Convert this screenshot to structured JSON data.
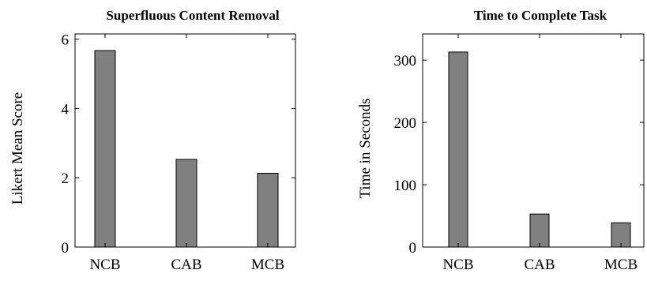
{
  "chart_data": [
    {
      "type": "bar",
      "title": "Superfluous Content Removal",
      "xlabel": "",
      "ylabel": "Likert Mean Score",
      "categories": [
        "NCB",
        "CAB",
        "MCB"
      ],
      "values": [
        5.67,
        2.53,
        2.13
      ],
      "ylim": [
        0,
        6.15
      ],
      "yticks": [
        0,
        2,
        4,
        6
      ],
      "bar_color": "#808080",
      "grid": false
    },
    {
      "type": "bar",
      "title": "Time to Complete Task",
      "xlabel": "",
      "ylabel": "Time in Seconds",
      "categories": [
        "NCB",
        "CAB",
        "MCB"
      ],
      "values": [
        313,
        53,
        39
      ],
      "ylim": [
        0,
        342
      ],
      "yticks": [
        0,
        100,
        200,
        300
      ],
      "bar_color": "#808080",
      "grid": false
    }
  ]
}
